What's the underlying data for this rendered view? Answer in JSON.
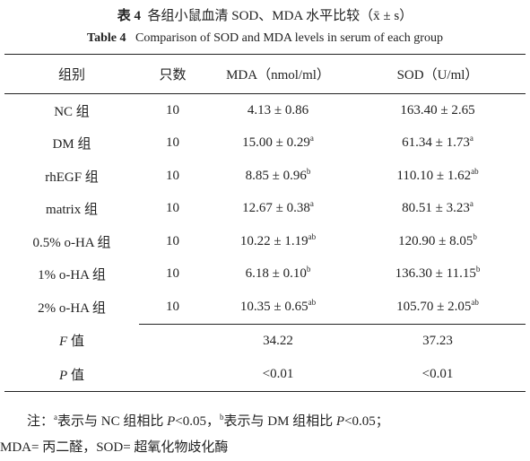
{
  "title": {
    "label_cn": "表 4",
    "text_cn": "各组小鼠血清 SOD、MDA 水平比较（x̄ ± s）",
    "label_en": "Table 4",
    "text_en": "Comparison of SOD and MDA levels in serum of each group"
  },
  "table": {
    "header": [
      "组别",
      "只数",
      "MDA（nmol/ml）",
      "SOD（U/ml）"
    ],
    "rows": [
      {
        "group": "NC 组",
        "n": "10",
        "mda": "4.13 ± 0.86",
        "sod": "163.40 ± 2.65"
      },
      {
        "group": "DM 组",
        "n": "10",
        "mda": "15.00 ± 0.29",
        "mda_sup": "a",
        "sod": "61.34 ± 1.73",
        "sod_sup": "a"
      },
      {
        "group": "rhEGF 组",
        "n": "10",
        "mda": "8.85 ± 0.96",
        "mda_sup": "b",
        "sod": "110.10 ± 1.62",
        "sod_sup": "ab"
      },
      {
        "group": "matrix 组",
        "n": "10",
        "mda": "12.67 ± 0.38",
        "mda_sup": "a",
        "sod": "80.51 ± 3.23",
        "sod_sup": "a"
      },
      {
        "group": "0.5% o-HA 组",
        "n": "10",
        "mda": "10.22 ± 1.19",
        "mda_sup": "ab",
        "sod": "120.90 ± 8.05",
        "sod_sup": "b"
      },
      {
        "group": "1% o-HA 组",
        "n": "10",
        "mda": "6.18 ± 0.10",
        "mda_sup": "b",
        "sod": "136.30 ± 11.15",
        "sod_sup": "b"
      },
      {
        "group": "2% o-HA 组",
        "n": "10",
        "mda": "10.35 ± 0.65",
        "mda_sup": "ab",
        "sod": "105.70 ± 2.05",
        "sod_sup": "ab"
      }
    ],
    "stats": [
      {
        "symbol": "F",
        "label": "值",
        "mda": "34.22",
        "sod": "37.23"
      },
      {
        "symbol": "P",
        "label": "值",
        "mda": "<0.01",
        "sod": "<0.01"
      }
    ]
  },
  "notes": {
    "parts": [
      "注：",
      "a",
      "表示与 NC 组相比 ",
      "P",
      "<0.05，",
      "b",
      "表示与 DM 组相比 ",
      "P",
      "<0.05；"
    ],
    "line2": "MDA= 丙二醛，SOD= 超氧化物歧化酶"
  }
}
